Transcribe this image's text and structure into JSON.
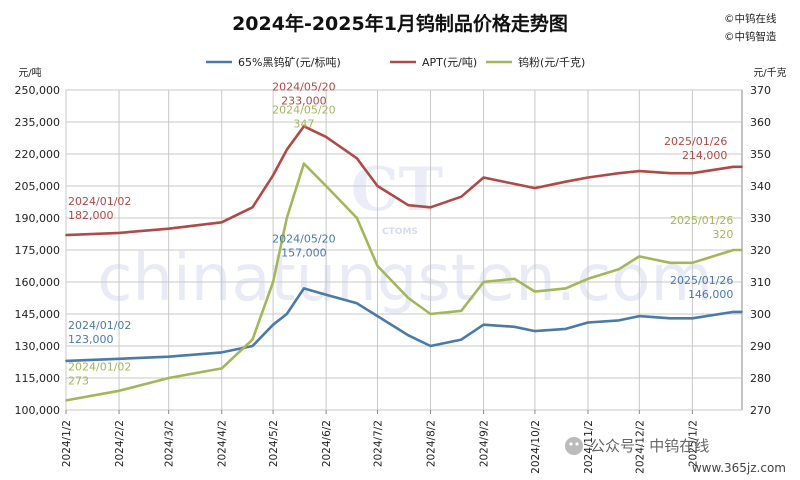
{
  "chart_data": {
    "type": "line",
    "title": "2024年-2025年1月钨制品价格走势图",
    "brand_lines": [
      "©中钨在线",
      "©中钨智造"
    ],
    "left_unit": "元/吨",
    "right_unit": "元/千克",
    "left_ylim": [
      100000,
      250000
    ],
    "right_ylim": [
      270,
      370
    ],
    "left_ticks": [
      "250,000",
      "235,000",
      "220,000",
      "205,000",
      "190,000",
      "175,000",
      "160,000",
      "145,000",
      "130,000",
      "115,000",
      "100,000"
    ],
    "right_ticks": [
      "370",
      "360",
      "350",
      "340",
      "330",
      "320",
      "310",
      "300",
      "290",
      "280",
      "270"
    ],
    "x_ticks": [
      "2024/1/2",
      "2024/2/2",
      "2024/3/2",
      "2024/4/2",
      "2024/5/2",
      "2024/6/2",
      "2024/7/2",
      "2024/8/2",
      "2024/9/2",
      "2024/10/2",
      "2024/11/2",
      "2024/12/2",
      "2025/1/2"
    ],
    "x_range": [
      "2024/01/02",
      "2025/01/31"
    ],
    "grid": true,
    "legend_position": "top",
    "series": [
      {
        "name": "65%黑钨矿(元/标吨)",
        "axis": "left",
        "color": "#4a7aa8",
        "points": [
          [
            "2024/01/02",
            123000
          ],
          [
            "2024/02/02",
            124000
          ],
          [
            "2024/03/02",
            125000
          ],
          [
            "2024/04/02",
            127000
          ],
          [
            "2024/04/20",
            130000
          ],
          [
            "2024/05/02",
            140000
          ],
          [
            "2024/05/10",
            145000
          ],
          [
            "2024/05/20",
            157000
          ],
          [
            "2024/06/02",
            154000
          ],
          [
            "2024/06/20",
            150000
          ],
          [
            "2024/07/02",
            144000
          ],
          [
            "2024/07/20",
            135000
          ],
          [
            "2024/08/02",
            130000
          ],
          [
            "2024/08/20",
            133000
          ],
          [
            "2024/09/02",
            140000
          ],
          [
            "2024/09/20",
            139000
          ],
          [
            "2024/10/02",
            137000
          ],
          [
            "2024/10/20",
            138000
          ],
          [
            "2024/11/02",
            141000
          ],
          [
            "2024/11/20",
            142000
          ],
          [
            "2024/12/02",
            144000
          ],
          [
            "2024/12/20",
            143000
          ],
          [
            "2025/01/02",
            143000
          ],
          [
            "2025/01/26",
            146000
          ],
          [
            "2025/01/31",
            146000
          ]
        ]
      },
      {
        "name": "APT(元/吨)",
        "axis": "left",
        "color": "#b04a48",
        "points": [
          [
            "2024/01/02",
            182000
          ],
          [
            "2024/02/02",
            183000
          ],
          [
            "2024/03/02",
            185000
          ],
          [
            "2024/04/02",
            188000
          ],
          [
            "2024/04/20",
            195000
          ],
          [
            "2024/05/02",
            210000
          ],
          [
            "2024/05/10",
            222000
          ],
          [
            "2024/05/20",
            233000
          ],
          [
            "2024/06/02",
            228000
          ],
          [
            "2024/06/20",
            218000
          ],
          [
            "2024/07/02",
            205000
          ],
          [
            "2024/07/20",
            196000
          ],
          [
            "2024/08/02",
            195000
          ],
          [
            "2024/08/20",
            200000
          ],
          [
            "2024/09/02",
            209000
          ],
          [
            "2024/09/20",
            206000
          ],
          [
            "2024/10/02",
            204000
          ],
          [
            "2024/10/20",
            207000
          ],
          [
            "2024/11/02",
            209000
          ],
          [
            "2024/11/20",
            211000
          ],
          [
            "2024/12/02",
            212000
          ],
          [
            "2024/12/20",
            211000
          ],
          [
            "2025/01/02",
            211000
          ],
          [
            "2025/01/26",
            214000
          ],
          [
            "2025/01/31",
            214000
          ]
        ]
      },
      {
        "name": "钨粉(元/千克)",
        "axis": "right",
        "color": "#a3b75a",
        "points": [
          [
            "2024/01/02",
            273
          ],
          [
            "2024/02/02",
            276
          ],
          [
            "2024/03/02",
            280
          ],
          [
            "2024/04/02",
            283
          ],
          [
            "2024/04/20",
            292
          ],
          [
            "2024/05/02",
            310
          ],
          [
            "2024/05/10",
            330
          ],
          [
            "2024/05/20",
            347
          ],
          [
            "2024/06/02",
            340
          ],
          [
            "2024/06/20",
            330
          ],
          [
            "2024/07/02",
            315
          ],
          [
            "2024/07/20",
            305
          ],
          [
            "2024/08/02",
            300
          ],
          [
            "2024/08/20",
            301
          ],
          [
            "2024/09/02",
            310
          ],
          [
            "2024/09/20",
            311
          ],
          [
            "2024/10/02",
            307
          ],
          [
            "2024/10/20",
            308
          ],
          [
            "2024/11/02",
            311
          ],
          [
            "2024/11/20",
            314
          ],
          [
            "2024/12/02",
            318
          ],
          [
            "2024/12/20",
            316
          ],
          [
            "2025/01/02",
            316
          ],
          [
            "2025/01/26",
            320
          ],
          [
            "2025/01/31",
            320
          ]
        ]
      }
    ],
    "annotations": [
      {
        "series": 0,
        "date": "2024/01/02",
        "value": 123000,
        "date_label": "2024/01/02",
        "value_label": "123,000",
        "anchor": "start"
      },
      {
        "series": 0,
        "date": "2024/05/20",
        "value": 157000,
        "date_label": "2024/05/20",
        "value_label": "157,000",
        "anchor": "middle"
      },
      {
        "series": 0,
        "date": "2025/01/26",
        "value": 146000,
        "date_label": "2025/01/26",
        "value_label": "146,000",
        "anchor": "end"
      },
      {
        "series": 1,
        "date": "2024/01/02",
        "value": 182000,
        "date_label": "2024/01/02",
        "value_label": "182,000",
        "anchor": "start"
      },
      {
        "series": 1,
        "date": "2024/05/20",
        "value": 233000,
        "date_label": "2024/05/20",
        "value_label": "233,000",
        "anchor": "middle"
      },
      {
        "series": 1,
        "date": "2025/01/26",
        "value": 214000,
        "date_label": "2025/01/26",
        "value_label": "214,000",
        "anchor": "end"
      },
      {
        "series": 2,
        "date": "2024/01/02",
        "value": 273,
        "date_label": "2024/01/02",
        "value_label": "273",
        "anchor": "start"
      },
      {
        "series": 2,
        "date": "2024/05/20",
        "value": 347,
        "date_label": "2024/05/20",
        "value_label": "347",
        "anchor": "middle"
      },
      {
        "series": 2,
        "date": "2025/01/26",
        "value": 320,
        "date_label": "2025/01/26",
        "value_label": "320",
        "anchor": "end"
      }
    ]
  },
  "watermark": {
    "main": "chinatungsten.com",
    "logo_text": "CTOMS"
  },
  "wechat": {
    "label": "公众号 · 中钨在线",
    "site": "www.365jz.com"
  }
}
